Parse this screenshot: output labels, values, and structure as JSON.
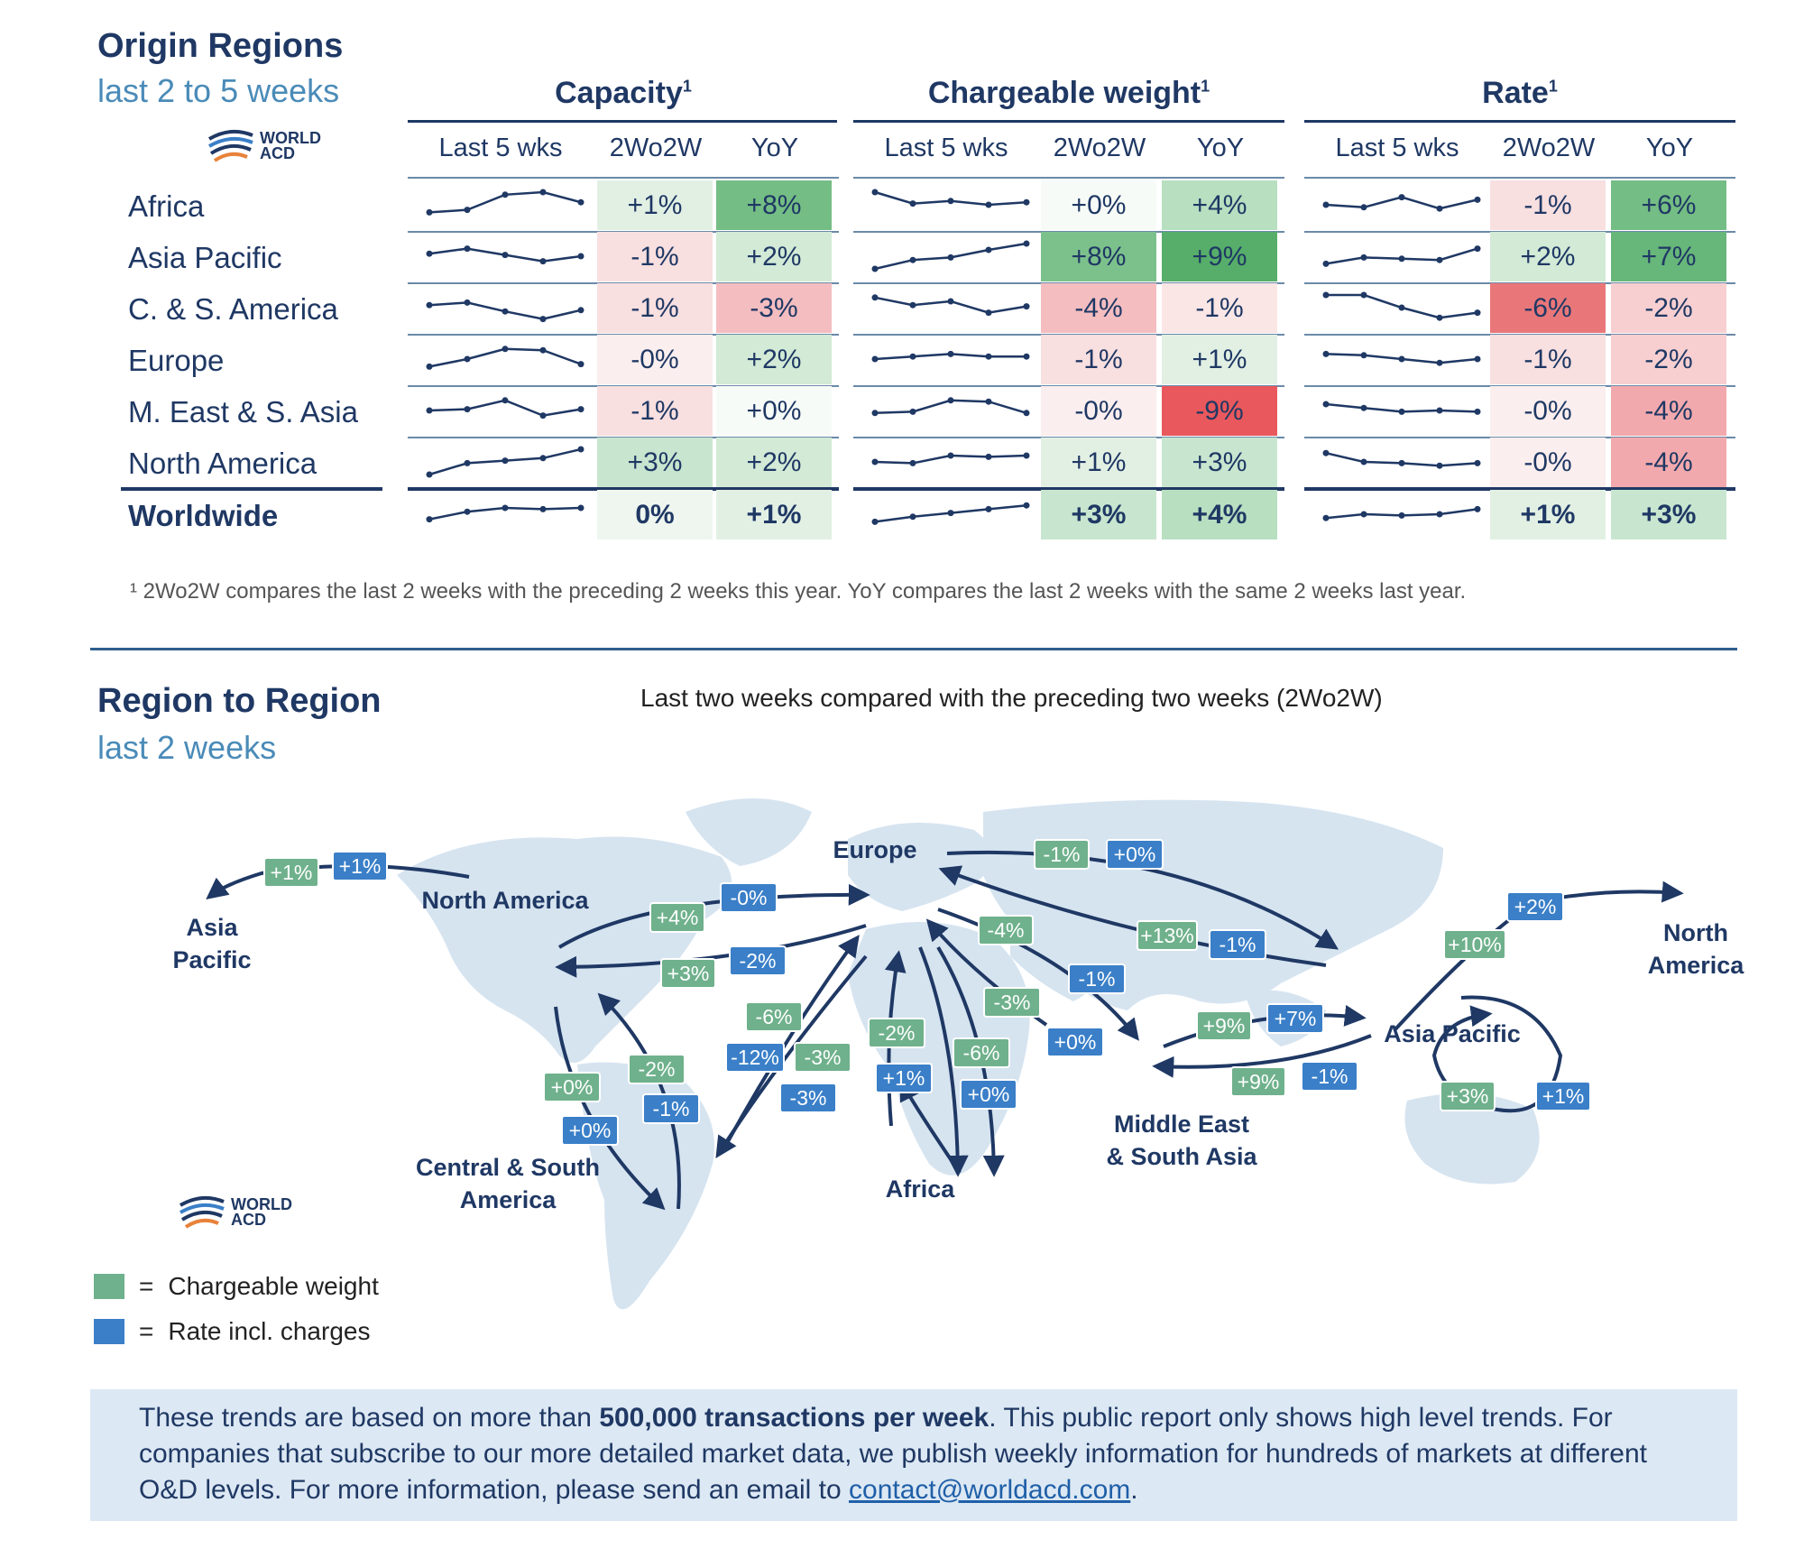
{
  "origin": {
    "title": "Origin Regions",
    "subtitle": "last 2 to 5 weeks",
    "logo": {
      "line1": "WORLD",
      "line2": "ACD"
    },
    "groups": [
      {
        "title": "Capacity",
        "sup": "1"
      },
      {
        "title": "Chargeable weight",
        "sup": "1"
      },
      {
        "title": "Rate",
        "sup": "1"
      }
    ],
    "col_heads": [
      "Last 5 wks",
      "2Wo2W",
      "YoY"
    ],
    "footnote": "¹ 2Wo2W compares the last 2 weeks with the preceding 2 weeks this year. YoY compares the last 2 weeks with the same 2 weeks last year."
  },
  "chart_data": {
    "type": "table",
    "regions": [
      "Africa",
      "Asia Pacific",
      "C. & S. America",
      "Europe",
      "M. East & S. Asia",
      "North America",
      "Worldwide"
    ],
    "capacity": {
      "spark": [
        [
          0.2,
          0.3,
          0.9,
          1.0,
          0.6
        ],
        [
          0.6,
          0.8,
          0.55,
          0.3,
          0.5
        ],
        [
          0.6,
          0.7,
          0.35,
          0.05,
          0.4
        ],
        [
          0.2,
          0.5,
          0.9,
          0.85,
          0.3
        ],
        [
          0.5,
          0.55,
          0.9,
          0.3,
          0.55
        ],
        [
          0.0,
          0.45,
          0.55,
          0.65,
          1.0
        ],
        [
          0.3,
          0.6,
          0.75,
          0.7,
          0.75
        ]
      ],
      "w2o2w": [
        "+1%",
        "-1%",
        "-1%",
        "-0%",
        "-1%",
        "+3%",
        "0%"
      ],
      "w2o2w_bg": [
        "#e2f0e4",
        "#f8dfe0",
        "#f8dfe0",
        "#fbeeee",
        "#f8dfe0",
        "#c8e6cf",
        "#eef6ef"
      ],
      "yoy": [
        "+8%",
        "+2%",
        "-3%",
        "+2%",
        "+0%",
        "+2%",
        "+1%"
      ],
      "yoy_bg": [
        "#74bd84",
        "#d2ead6",
        "#f4bdc0",
        "#d2ead6",
        "#f7fbf7",
        "#d2ead6",
        "#e2f0e4"
      ]
    },
    "chargeable_weight": {
      "spark": [
        [
          1.0,
          0.55,
          0.65,
          0.5,
          0.6
        ],
        [
          0.0,
          0.35,
          0.45,
          0.75,
          1.0
        ],
        [
          0.9,
          0.6,
          0.75,
          0.3,
          0.55
        ],
        [
          0.5,
          0.6,
          0.7,
          0.6,
          0.6
        ],
        [
          0.4,
          0.45,
          0.9,
          0.85,
          0.4
        ],
        [
          0.5,
          0.45,
          0.75,
          0.7,
          0.75
        ],
        [
          0.2,
          0.4,
          0.55,
          0.7,
          0.85
        ]
      ],
      "w2o2w": [
        "+0%",
        "+8%",
        "-4%",
        "-1%",
        "-0%",
        "+1%",
        "+3%"
      ],
      "w2o2w_bg": [
        "#f7fbf7",
        "#7cc18c",
        "#f4bdc0",
        "#f8dfe0",
        "#fbeeee",
        "#e2f0e4",
        "#c8e6cf"
      ],
      "yoy": [
        "+4%",
        "+9%",
        "-1%",
        "+1%",
        "-9%",
        "+3%",
        "+4%"
      ],
      "yoy_bg": [
        "#b7dfc0",
        "#56ae6a",
        "#fbe6e6",
        "#e2f0e4",
        "#e9585c",
        "#c8e6cf",
        "#b7dfc0"
      ]
    },
    "rate": {
      "spark": [
        [
          0.5,
          0.4,
          0.8,
          0.35,
          0.7
        ],
        [
          0.2,
          0.45,
          0.4,
          0.35,
          0.8
        ],
        [
          1.0,
          1.0,
          0.5,
          0.1,
          0.3
        ],
        [
          0.7,
          0.65,
          0.5,
          0.35,
          0.5
        ],
        [
          0.75,
          0.6,
          0.45,
          0.5,
          0.45
        ],
        [
          0.85,
          0.5,
          0.45,
          0.35,
          0.45
        ],
        [
          0.35,
          0.5,
          0.45,
          0.5,
          0.7
        ]
      ],
      "w2o2w": [
        "-1%",
        "+2%",
        "-6%",
        "-1%",
        "-0%",
        "-0%",
        "+1%"
      ],
      "w2o2w_bg": [
        "#f8dfe0",
        "#d2ead6",
        "#e9777a",
        "#f8dfe0",
        "#fbeeee",
        "#fbeeee",
        "#e2f0e4"
      ],
      "yoy": [
        "+6%",
        "+7%",
        "-2%",
        "-2%",
        "-4%",
        "-4%",
        "+3%"
      ],
      "yoy_bg": [
        "#74bd84",
        "#67b67a",
        "#f7cfd1",
        "#f7cfd1",
        "#f2a9ad",
        "#f2a9ad",
        "#c8e6cf"
      ]
    }
  },
  "region_map": {
    "title": "Region to Region",
    "subtitle": "last 2 weeks",
    "caption": "Last two weeks compared with the preceding two weeks (2Wo2W)",
    "labels": {
      "asia_pacific_left": [
        "Asia",
        "Pacific"
      ],
      "north_america": "North America",
      "europe": "Europe",
      "north_america_right": [
        "North",
        "America"
      ],
      "asia_pacific": "Asia Pacific",
      "central_south_america": [
        "Central & South",
        "America"
      ],
      "africa": "Africa",
      "middle_east": [
        "Middle East",
        "& South Asia"
      ]
    },
    "badges": [
      {
        "text": "+1%",
        "color": "green"
      },
      {
        "text": "+1%",
        "color": "blue"
      },
      {
        "text": "+4%",
        "color": "green"
      },
      {
        "text": "-0%",
        "color": "blue"
      },
      {
        "text": "+3%",
        "color": "green"
      },
      {
        "text": "-2%",
        "color": "blue"
      },
      {
        "text": "-1%",
        "color": "green"
      },
      {
        "text": "+0%",
        "color": "blue"
      },
      {
        "text": "-4%",
        "color": "green"
      },
      {
        "text": "+13%",
        "color": "green"
      },
      {
        "text": "-1%",
        "color": "blue"
      },
      {
        "text": "-1%",
        "color": "blue"
      },
      {
        "text": "+2%",
        "color": "blue"
      },
      {
        "text": "+10%",
        "color": "green"
      },
      {
        "text": "-6%",
        "color": "green"
      },
      {
        "text": "-12%",
        "color": "blue"
      },
      {
        "text": "-3%",
        "color": "green"
      },
      {
        "text": "-3%",
        "color": "blue"
      },
      {
        "text": "-2%",
        "color": "green"
      },
      {
        "text": "+1%",
        "color": "blue"
      },
      {
        "text": "-3%",
        "color": "green"
      },
      {
        "text": "-6%",
        "color": "green"
      },
      {
        "text": "+0%",
        "color": "blue"
      },
      {
        "text": "+0%",
        "color": "blue"
      },
      {
        "text": "+9%",
        "color": "green"
      },
      {
        "text": "+7%",
        "color": "blue"
      },
      {
        "text": "+9%",
        "color": "green"
      },
      {
        "text": "-1%",
        "color": "blue"
      },
      {
        "text": "+0%",
        "color": "green"
      },
      {
        "text": "+0%",
        "color": "blue"
      },
      {
        "text": "-2%",
        "color": "green"
      },
      {
        "text": "-1%",
        "color": "blue"
      },
      {
        "text": "+3%",
        "color": "green"
      },
      {
        "text": "+1%",
        "color": "blue"
      }
    ],
    "logo": {
      "line1": "WORLD",
      "line2": "ACD"
    },
    "legend": [
      {
        "label": "Chargeable weight",
        "color": "#6fb18c"
      },
      {
        "label": "Rate incl. charges",
        "color": "#3a7fc8"
      }
    ],
    "legend_eq": "="
  },
  "info": {
    "part1": "These trends are based on more than ",
    "bold": "500,000 transactions per week",
    "part2": ". This public report only shows high level trends. For companies that subscribe to our more detailed market data, we publish weekly information for hundreds of markets at different O&D levels. For more information, please send an email to ",
    "email": "contact@worldacd.com",
    "part3": "."
  },
  "colors": {
    "navy": "#1f3864",
    "accent": "#4a8bb8",
    "green": "#6fb18c",
    "blue": "#3a7fc8",
    "arrow": "#1f3864",
    "land": "#d6e4f0"
  }
}
